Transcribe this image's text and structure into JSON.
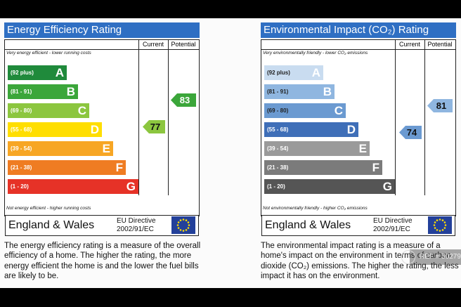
{
  "energy": {
    "title": "Energy Efficiency Rating",
    "col_current": "Current",
    "col_potential": "Potential",
    "top_note": "Very energy efficient - lower running costs",
    "bottom_note": "Not energy efficient - higher running costs",
    "region": "England & Wales",
    "directive": "EU Directive",
    "directive_code": "2002/91/EC",
    "current": "77",
    "potential": "83",
    "bands": [
      {
        "range": "(92 plus)",
        "letter": "A",
        "color": "#1f8a3b"
      },
      {
        "range": "(81 - 91)",
        "letter": "B",
        "color": "#3ba63a"
      },
      {
        "range": "(69 - 80)",
        "letter": "C",
        "color": "#8cc63f"
      },
      {
        "range": "(55 - 68)",
        "letter": "D",
        "color": "#ffde00"
      },
      {
        "range": "(39 - 54)",
        "letter": "E",
        "color": "#f7a624"
      },
      {
        "range": "(21 - 38)",
        "letter": "F",
        "color": "#ef7c22"
      },
      {
        "range": "(1 - 20)",
        "letter": "G",
        "color": "#e63227"
      }
    ],
    "description": "The energy efficiency rating is a measure of the overall efficiency of a home. The higher the rating, the more energy efficient the home is and the lower the fuel bills are likely to be."
  },
  "environment": {
    "title": "Environmental Impact (CO₂) Rating",
    "col_current": "Current",
    "col_potential": "Potential",
    "top_note": "Very environmentally friendly - lower CO₂ emissions",
    "bottom_note": "Not environmentally friendly - higher CO₂ emissions",
    "region": "England & Wales",
    "directive": "EU Directive",
    "directive_code": "2002/91/EC",
    "current": "74",
    "potential": "81",
    "bands": [
      {
        "range": "(92 plus)",
        "letter": "A",
        "color": "#c9dcf0"
      },
      {
        "range": "(81 - 91)",
        "letter": "B",
        "color": "#8fb6e0"
      },
      {
        "range": "(69 - 80)",
        "letter": "C",
        "color": "#6b9ad1"
      },
      {
        "range": "(55 - 68)",
        "letter": "D",
        "color": "#3f6fb8"
      },
      {
        "range": "(39 - 54)",
        "letter": "E",
        "color": "#9a9a9a"
      },
      {
        "range": "(21 - 38)",
        "letter": "F",
        "color": "#7b7b7b"
      },
      {
        "range": "(1 - 20)",
        "letter": "G",
        "color": "#555555"
      }
    ],
    "description": "The environmental impact rating is a measure of a home's impact on the environment in terms of carbon dioxide (CO₂) emissions. The higher the rating, the less impact it has on the environment."
  },
  "watermark": "REF # 502791",
  "colors": {
    "header_blue": "#2f6fc3",
    "current_arrow_energy": "#8cc63f",
    "potential_arrow_energy": "#3ba63a",
    "current_arrow_env": "#6b9ad1",
    "potential_arrow_env": "#8fb6e0",
    "eu_flag": "#23409a",
    "eu_star": "#ffde00"
  }
}
